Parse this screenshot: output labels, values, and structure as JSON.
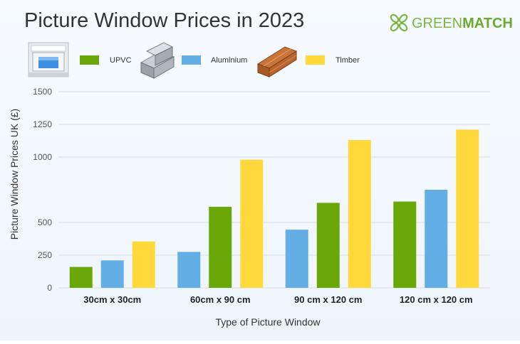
{
  "header": {
    "title": "Picture Window Prices in 2023",
    "brand_part1": "GREEN",
    "brand_part2": "MATCH"
  },
  "colors": {
    "upvc": "#6aa80a",
    "aluminium": "#64aee6",
    "timber": "#ffd83c",
    "grid": "#d9dde2",
    "brand": "#7ab83b"
  },
  "icons": {
    "upvc": "upvc-window-icon",
    "aluminium": "aluminium-profile-icon",
    "timber": "timber-planks-icon",
    "brand": "clover-logo-icon"
  },
  "chart_data": {
    "type": "bar",
    "title": "Picture Window Prices in 2023",
    "xlabel": "Type of Picture Window",
    "ylabel": "Picture Window Prices UK (£)",
    "categories": [
      "30cm x 30cm",
      "60cm x 90 cm",
      "90 cm x 120 cm",
      "120 cm x 120 cm"
    ],
    "ylim": [
      0,
      1500
    ],
    "yticks": [
      0,
      250,
      500,
      1000,
      1250,
      1500
    ],
    "ytick_labels": [
      "0",
      "250",
      "500",
      "1000",
      "1250",
      "1500"
    ],
    "grid": true,
    "legend_position": "top-left",
    "series_order_per_category": [
      [
        "UPVC",
        "Aluminium",
        "Timber"
      ],
      [
        "Aluminium",
        "UPVC",
        "Timber"
      ],
      [
        "Aluminium",
        "UPVC",
        "Timber"
      ],
      [
        "UPVC",
        "Aluminium",
        "Timber"
      ]
    ],
    "series": [
      {
        "name": "UPVC",
        "color": "#6aa80a",
        "values": [
          160,
          620,
          650,
          660
        ]
      },
      {
        "name": "Aluminium",
        "color": "#64aee6",
        "values": [
          210,
          275,
          445,
          750
        ]
      },
      {
        "name": "Timber",
        "color": "#ffd83c",
        "values": [
          355,
          980,
          1130,
          1210
        ]
      }
    ]
  }
}
